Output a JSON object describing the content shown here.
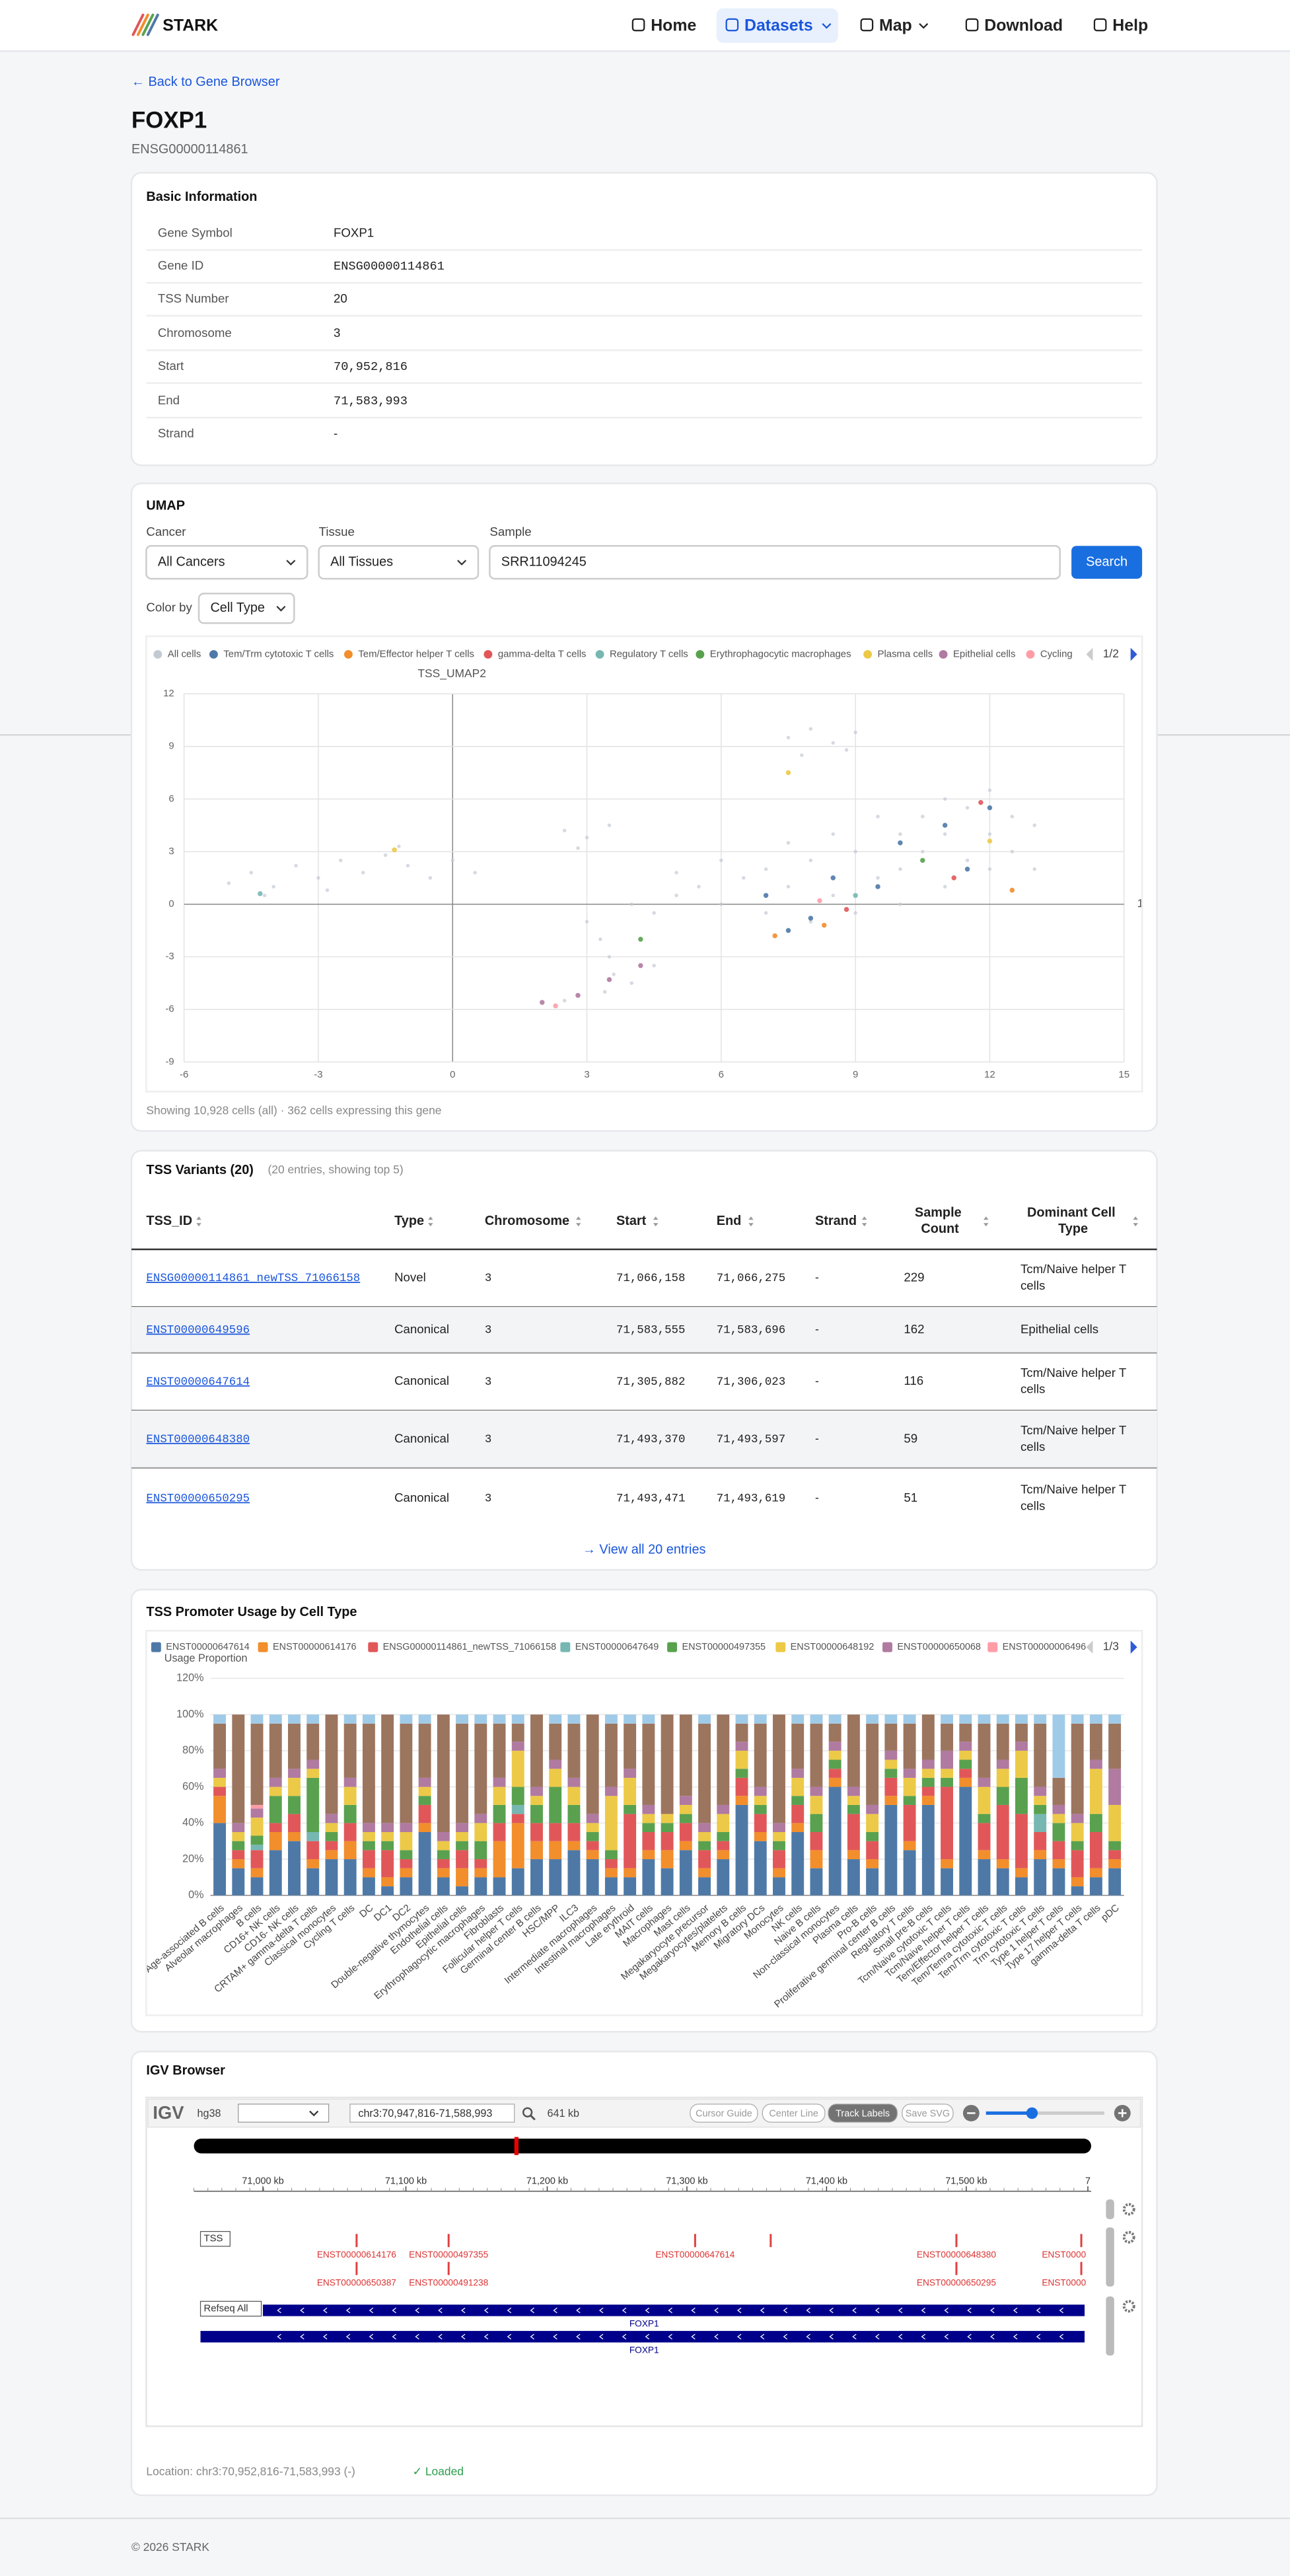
{
  "nav": {
    "brand": "STARK",
    "items": [
      "Home",
      "Datasets",
      "Map",
      "Download",
      "Help"
    ]
  },
  "back_link": "← Back to Gene Browser",
  "gene": {
    "symbol": "FOXP1",
    "id": "ENSG00000114861"
  },
  "basic_info": {
    "title": "Basic Information",
    "rows": [
      [
        "Gene Symbol",
        "FOXP1"
      ],
      [
        "Gene ID",
        "ENSG00000114861"
      ],
      [
        "TSS Number",
        20
      ],
      [
        "Chromosome",
        3
      ],
      [
        "Start",
        "70,952,816"
      ],
      [
        "End",
        "71,583,993"
      ],
      [
        "Strand",
        "-"
      ]
    ]
  },
  "umap": {
    "title": "UMAP",
    "filters": [
      {
        "label": "Cancer",
        "value": "All Cancers"
      },
      {
        "label": "Tissue",
        "value": "All Tissues"
      },
      {
        "label": "Sample",
        "value": "SRR11094245"
      }
    ],
    "search": "Search",
    "color_by_label": "Color by",
    "color_by": "Cell Type",
    "legend_page": "1/2",
    "caption": "Showing 10,928 cells (all) · 362 cells expressing this gene"
  },
  "chart_data": [
    {
      "type": "scatter",
      "ylabel": "TSS_UMAP2",
      "xlabel": "1",
      "xlim": [
        -6,
        15
      ],
      "ylim": [
        -9,
        12
      ],
      "xticks": [
        -6,
        -3,
        0,
        3,
        6,
        9,
        12,
        15
      ],
      "yticks": [
        -9,
        -6,
        -3,
        0,
        3,
        6,
        9,
        12
      ],
      "grid": true,
      "series": [
        {
          "name": "All cells",
          "color": "#c3cad4",
          "x": [
            -5,
            -4.5,
            -4,
            -3.5,
            -3,
            -2.5,
            -2,
            -1.5,
            -1,
            -0.5,
            0,
            0.5,
            -4.2,
            -2.8,
            -1.2,
            7.5,
            8,
            8.5,
            9,
            7.8,
            8.8,
            2.5,
            3,
            3.5,
            2.8,
            3,
            3.3,
            3.5,
            3.6,
            3.4,
            2.5,
            4,
            4.5,
            4,
            4.5,
            5,
            5.5,
            6,
            6.5,
            7,
            7,
            7.5,
            8,
            8,
            8.5,
            9,
            9,
            9.5,
            10,
            10,
            10,
            10.5,
            10.5,
            11,
            11,
            11,
            11.5,
            11.5,
            12,
            12,
            12,
            12.5,
            12.5,
            13,
            8.5,
            9.5,
            7.5,
            6,
            5,
            13
          ],
          "y": [
            1.2,
            1.8,
            1,
            2.2,
            1.5,
            2.5,
            1.8,
            2.8,
            2.2,
            1.5,
            2.5,
            1.8,
            0.5,
            0.8,
            3.3,
            9.5,
            10,
            9.2,
            9.8,
            8.5,
            8.8,
            4.2,
            3.8,
            4.5,
            3.2,
            -1,
            -2,
            -3,
            -4,
            -5,
            -5.5,
            -4.5,
            -3.5,
            0,
            -0.5,
            0.5,
            1,
            0,
            1.5,
            -0.5,
            2,
            1,
            -1,
            2.5,
            0.5,
            3,
            -0.5,
            1.5,
            4,
            2,
            0,
            5,
            3,
            6,
            4,
            1,
            5.5,
            2.5,
            6.5,
            4,
            2,
            5,
            3,
            4.5,
            4,
            5,
            3.5,
            2.5,
            1.8,
            2
          ]
        },
        {
          "name": "Tem/Trm cytotoxic T cells",
          "color": "#4e79a7",
          "x": [
            7,
            8,
            9.5,
            11,
            12,
            10,
            8.5,
            11.5,
            7.5
          ],
          "y": [
            0.5,
            -0.8,
            1,
            4.5,
            5.5,
            3.5,
            1.5,
            2,
            -1.5
          ]
        },
        {
          "name": "Tem/Effector helper T cells",
          "color": "#f28e2b",
          "x": [
            7.2,
            8.3,
            12.5
          ],
          "y": [
            -1.8,
            -1.2,
            0.8
          ]
        },
        {
          "name": "gamma-delta T cells",
          "color": "#e15759",
          "x": [
            8.8,
            11.2,
            11.8
          ],
          "y": [
            -0.3,
            1.5,
            5.8
          ]
        },
        {
          "name": "Regulatory T cells",
          "color": "#76b7b2",
          "x": [
            9,
            -4.3
          ],
          "y": [
            0.5,
            0.6
          ]
        },
        {
          "name": "Erythrophagocytic macrophages",
          "color": "#59a14f",
          "x": [
            10.5,
            4.2
          ],
          "y": [
            2.5,
            -2
          ]
        },
        {
          "name": "Plasma cells",
          "color": "#edc948",
          "x": [
            -1.3,
            7.5,
            12
          ],
          "y": [
            3.1,
            7.5,
            3.6
          ]
        },
        {
          "name": "Epithelial cells",
          "color": "#b07aa1",
          "x": [
            2,
            2.8,
            3.5,
            4.2
          ],
          "y": [
            -5.6,
            -5.2,
            -4.3,
            -3.5
          ]
        },
        {
          "name": "Cycling",
          "color": "#ff9da7",
          "x": [
            2.3,
            8.2
          ],
          "y": [
            -5.8,
            0.2
          ]
        }
      ]
    },
    {
      "type": "bar",
      "stacked": true,
      "ylabel": "Usage Proportion",
      "ylim": [
        0,
        120
      ],
      "yticks": [
        {
          "value": 0,
          "label": "0%"
        },
        {
          "value": 20,
          "label": "20%"
        },
        {
          "value": 40,
          "label": "40%"
        },
        {
          "value": 60,
          "label": "60%"
        },
        {
          "value": 80,
          "label": "80%"
        },
        {
          "value": 100,
          "label": "100%"
        },
        {
          "value": 120,
          "label": "120%"
        }
      ],
      "grid": true,
      "categories": [
        "Age-associated B cells",
        "Alveolar macrophages",
        "B cells",
        "CD16+ NK cells",
        "CD16- NK cells",
        "CRTAM+ gamma-delta T cells",
        "Classical monocytes",
        "Cycling T cells",
        "DC",
        "DC1",
        "DC2",
        "Double-negative thymocytes",
        "Endothelial cells",
        "Epithelial cells",
        "Erythrophagocytic macrophages",
        "Fibroblasts",
        "Follicular helper T cells",
        "Germinal center B cells",
        "HSC/MPP",
        "ILC3",
        "Intermediate macrophages",
        "Intestinal macrophages",
        "Late erythroid",
        "MAIT cells",
        "Macrophages",
        "Mast cells",
        "Megakaryocyte precursor",
        "Megakaryocytes/platelets",
        "Memory B cells",
        "Migratory DCs",
        "Monocytes",
        "NK cells",
        "Naive B cells",
        "Non-classical monocytes",
        "Plasma cells",
        "Pro-B cells",
        "Proliferative germinal center B cells",
        "Regulatory T cells",
        "Small pre-B cells",
        "Tcm/Naive cytotoxic T cells",
        "Tcm/Naive helper T cells",
        "Tem/Effector helper T cells",
        "Tem/Temra cytotoxic T cells",
        "Tem/Trm cytotoxic T cells",
        "Trm cytotoxic T cells",
        "Type 1 helper T cells",
        "Type 17 helper T cells",
        "gamma-delta T cells",
        "pDC"
      ],
      "series": [
        {
          "name": "ENST00000647614",
          "color": "#4e79a7",
          "values": [
            40,
            15,
            10,
            25,
            30,
            15,
            20,
            20,
            10,
            5,
            10,
            35,
            10,
            5,
            10,
            10,
            15,
            20,
            20,
            25,
            20,
            10,
            10,
            20,
            15,
            25,
            10,
            20,
            50,
            30,
            10,
            35,
            15,
            60,
            20,
            15,
            50,
            25,
            50,
            15,
            60,
            20,
            15,
            10,
            20,
            15,
            5,
            10,
            15
          ]
        },
        {
          "name": "ENST00000614176",
          "color": "#f28e2b",
          "values": [
            15,
            5,
            5,
            10,
            5,
            5,
            5,
            10,
            5,
            5,
            5,
            5,
            5,
            10,
            5,
            20,
            25,
            10,
            10,
            5,
            5,
            5,
            5,
            5,
            10,
            5,
            5,
            5,
            5,
            5,
            5,
            5,
            10,
            5,
            5,
            5,
            5,
            5,
            5,
            5,
            5,
            5,
            5,
            5,
            5,
            5,
            5,
            5,
            5
          ]
        },
        {
          "name": "ENSG00000114861_newTSS_71066158",
          "color": "#e15759",
          "values": [
            5,
            5,
            10,
            5,
            10,
            10,
            5,
            10,
            10,
            15,
            5,
            10,
            5,
            10,
            5,
            10,
            5,
            10,
            10,
            10,
            5,
            5,
            30,
            10,
            10,
            10,
            10,
            5,
            10,
            10,
            10,
            10,
            10,
            5,
            20,
            10,
            10,
            20,
            5,
            40,
            5,
            15,
            30,
            30,
            10,
            10,
            15,
            20,
            5
          ]
        },
        {
          "name": "ENST00000647649",
          "color": "#76b7b2",
          "values": [
            0,
            0,
            3,
            0,
            0,
            5,
            0,
            0,
            0,
            0,
            0,
            0,
            0,
            0,
            0,
            0,
            5,
            0,
            0,
            0,
            0,
            0,
            0,
            0,
            0,
            0,
            0,
            0,
            0,
            0,
            0,
            0,
            0,
            0,
            0,
            0,
            0,
            0,
            0,
            0,
            0,
            0,
            0,
            0,
            10,
            0,
            0,
            0,
            0
          ]
        },
        {
          "name": "ENST00000497355",
          "color": "#59a14f",
          "values": [
            0,
            5,
            5,
            15,
            10,
            30,
            5,
            10,
            5,
            5,
            5,
            5,
            5,
            5,
            10,
            10,
            10,
            10,
            20,
            10,
            5,
            5,
            5,
            5,
            5,
            5,
            5,
            5,
            5,
            5,
            5,
            5,
            10,
            5,
            5,
            5,
            5,
            5,
            5,
            5,
            5,
            5,
            10,
            20,
            5,
            10,
            5,
            10,
            5
          ]
        },
        {
          "name": "ENST00000648192",
          "color": "#edc948",
          "values": [
            5,
            5,
            10,
            5,
            10,
            5,
            5,
            10,
            5,
            5,
            10,
            5,
            5,
            5,
            10,
            10,
            20,
            5,
            10,
            10,
            5,
            30,
            15,
            5,
            5,
            5,
            5,
            10,
            10,
            5,
            5,
            10,
            10,
            5,
            5,
            10,
            5,
            10,
            5,
            5,
            5,
            15,
            10,
            15,
            5,
            5,
            10,
            25,
            20
          ]
        },
        {
          "name": "ENST00000650068",
          "color": "#b07aa1",
          "values": [
            5,
            5,
            5,
            5,
            5,
            5,
            5,
            5,
            5,
            5,
            5,
            5,
            5,
            5,
            5,
            5,
            5,
            5,
            5,
            5,
            5,
            5,
            5,
            5,
            0,
            5,
            5,
            5,
            5,
            5,
            5,
            5,
            5,
            5,
            5,
            5,
            5,
            5,
            5,
            10,
            5,
            5,
            5,
            5,
            5,
            5,
            5,
            5,
            20
          ]
        },
        {
          "name": "ENST00000006496",
          "color": "#ff9da7",
          "values": [
            0,
            0,
            2,
            0,
            0,
            0,
            0,
            0,
            0,
            0,
            0,
            0,
            0,
            0,
            0,
            0,
            0,
            0,
            0,
            0,
            0,
            0,
            0,
            0,
            0,
            0,
            0,
            0,
            0,
            0,
            0,
            0,
            0,
            0,
            0,
            0,
            0,
            0,
            0,
            0,
            0,
            0,
            0,
            0,
            0,
            0,
            0,
            0,
            0
          ]
        },
        {
          "color": "#9c755f",
          "values": [
            25,
            60,
            45,
            30,
            25,
            20,
            55,
            30,
            55,
            60,
            55,
            30,
            65,
            55,
            50,
            30,
            10,
            40,
            20,
            30,
            55,
            35,
            25,
            45,
            55,
            45,
            55,
            50,
            10,
            35,
            60,
            25,
            35,
            10,
            40,
            45,
            15,
            25,
            25,
            15,
            10,
            30,
            20,
            10,
            35,
            15,
            50,
            20,
            25
          ]
        },
        {
          "color": "#a0cbe8",
          "values": [
            5,
            0,
            5,
            5,
            5,
            5,
            0,
            5,
            5,
            0,
            5,
            5,
            0,
            5,
            5,
            5,
            5,
            0,
            5,
            5,
            0,
            5,
            5,
            5,
            0,
            0,
            5,
            0,
            5,
            5,
            0,
            5,
            5,
            5,
            0,
            5,
            5,
            5,
            0,
            5,
            5,
            5,
            5,
            5,
            5,
            35,
            5,
            5,
            5
          ]
        }
      ]
    }
  ],
  "tss_table": {
    "title": "TSS Variants (20)",
    "subtitle": "(20 entries, showing top 5)",
    "columns": [
      "TSS_ID",
      "Type",
      "Chromosome",
      "Start",
      "End",
      "Strand",
      "Sample Count",
      "Dominant Cell Type"
    ],
    "rows": [
      [
        "ENSG00000114861_newTSS_71066158",
        "Novel",
        3,
        "71,066,158",
        "71,066,275",
        "-",
        229,
        "Tcm/Naive helper T cells"
      ],
      [
        "ENST00000649596",
        "Canonical",
        3,
        "71,583,555",
        "71,583,696",
        "-",
        162,
        "Epithelial cells"
      ],
      [
        "ENST00000647614",
        "Canonical",
        3,
        "71,305,882",
        "71,306,023",
        "-",
        116,
        "Tcm/Naive helper T cells"
      ],
      [
        "ENST00000648380",
        "Canonical",
        3,
        "71,493,370",
        "71,493,597",
        "-",
        59,
        "Tcm/Naive helper T cells"
      ],
      [
        "ENST00000650295",
        "Canonical",
        3,
        "71,493,471",
        "71,493,619",
        "-",
        51,
        "Tcm/Naive helper T cells"
      ]
    ],
    "view_all": "→ View all 20 entries"
  },
  "promoter": {
    "title": "TSS Promoter Usage by Cell Type",
    "legend_page": "1/3"
  },
  "igv": {
    "title": "IGV Browser",
    "logo": "IGV",
    "genome": "hg38",
    "locus": "chr3:70,947,816-71,588,993",
    "width": "641 kb",
    "buttons": [
      "Cursor Guide",
      "Center Line",
      "Track Labels",
      "Save SVG"
    ],
    "ruler": [
      "71,000 kb",
      "71,100 kb",
      "71,200 kb",
      "71,300 kb",
      "71,400 kb",
      "71,500 kb",
      "7"
    ],
    "tracks": [
      "TSS",
      "Refseq All"
    ],
    "tss_top": [
      "ENST00000614176",
      "ENST00000497355",
      "ENST00000647614",
      "ENST00000648380",
      "ENST0000"
    ],
    "tss_bottom": [
      "ENST00000650387",
      "ENST00000491238",
      "ENST00000650295",
      "ENST0000"
    ],
    "gene_labels": [
      "FOXP1",
      "FOXP1"
    ],
    "location": "Location: chr3:70,952,816-71,583,993 (-)",
    "status": "✓ Loaded"
  },
  "footer": "© 2026 STARK"
}
